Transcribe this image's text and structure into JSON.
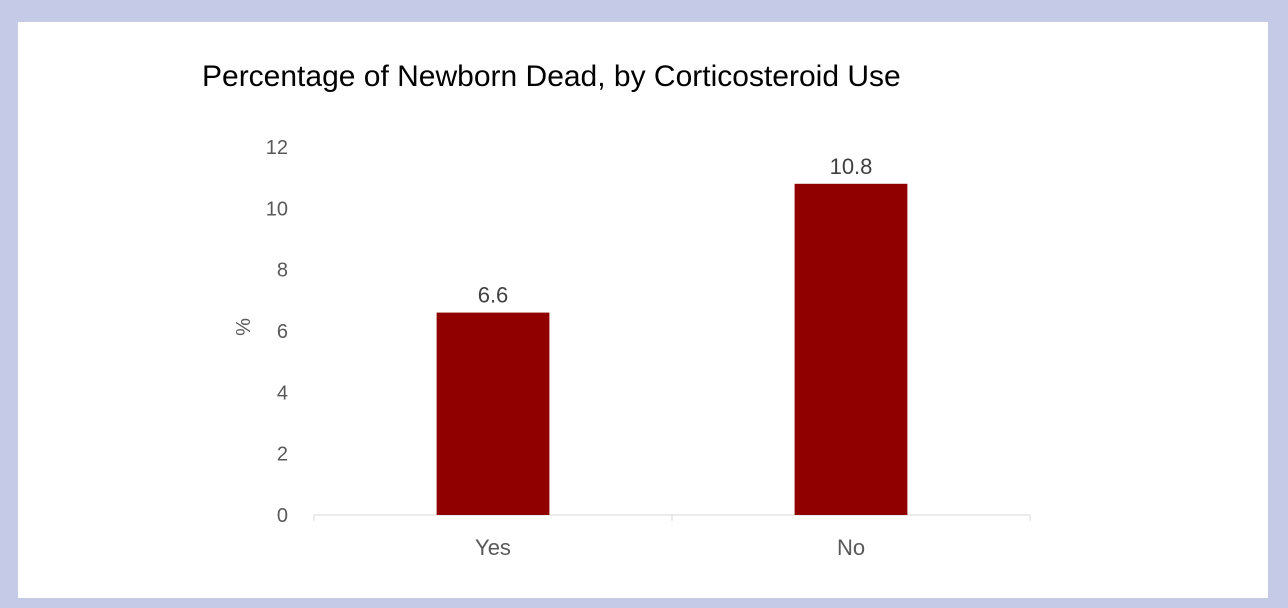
{
  "chart_data": {
    "type": "bar",
    "title": "Percentage of Newborn Dead, by Corticosteroid Use",
    "xlabel": "",
    "ylabel": "%",
    "categories": [
      "Yes",
      "No"
    ],
    "values": [
      6.6,
      10.8
    ],
    "data_labels": [
      "6.6",
      "10.8"
    ],
    "ylim": [
      0,
      12
    ],
    "yticks": [
      "0",
      "2",
      "4",
      "6",
      "8",
      "10",
      "12"
    ],
    "bar_color": "#900000",
    "grid": false,
    "legend": "none"
  }
}
